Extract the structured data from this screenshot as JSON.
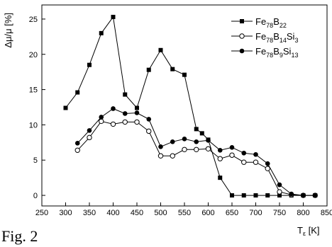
{
  "caption": "Fig. 2",
  "chart_data": {
    "type": "line",
    "xlabel_main": "T",
    "xlabel_sub": "ε",
    "xlabel_unit": " [K]",
    "ylabel": "Δμ/μ [%]",
    "xlim": [
      250,
      850
    ],
    "ylim": [
      -1.5,
      27
    ],
    "x_ticks": [
      250,
      300,
      350,
      400,
      450,
      500,
      550,
      600,
      650,
      700,
      750,
      800,
      850
    ],
    "y_ticks": [
      0,
      5,
      10,
      15,
      20,
      25
    ],
    "grid": false,
    "legend_position": "top-right",
    "series": [
      {
        "name_parts": [
          [
            "Fe",
            false
          ],
          [
            "78",
            true
          ],
          [
            "B",
            false
          ],
          [
            "22",
            true
          ]
        ],
        "marker": "square-filled",
        "x": [
          300,
          325,
          350,
          375,
          400,
          425,
          450,
          475,
          500,
          525,
          550,
          575,
          587,
          600,
          625,
          650,
          675,
          700,
          725,
          750,
          775,
          800,
          825
        ],
        "y": [
          12.4,
          14.6,
          18.5,
          23.0,
          25.3,
          14.3,
          12.4,
          17.8,
          20.6,
          17.9,
          17.1,
          9.4,
          8.8,
          7.9,
          2.5,
          0.0,
          0.0,
          0.0,
          0.0,
          0.0,
          0.0,
          0.0,
          0.0
        ]
      },
      {
        "name_parts": [
          [
            "Fe",
            false
          ],
          [
            "78",
            true
          ],
          [
            "B",
            false
          ],
          [
            "14",
            true
          ],
          [
            "Si",
            false
          ],
          [
            "3",
            true
          ]
        ],
        "marker": "circle-open",
        "x": [
          325,
          350,
          375,
          400,
          425,
          450,
          475,
          500,
          525,
          550,
          575,
          600,
          625,
          650,
          675,
          700,
          725,
          750,
          775,
          800,
          825
        ],
        "y": [
          6.4,
          8.2,
          10.5,
          10.1,
          10.4,
          10.4,
          9.1,
          5.6,
          5.6,
          6.5,
          6.5,
          6.6,
          5.2,
          5.7,
          4.7,
          4.7,
          3.8,
          0.5,
          0.1,
          0.0,
          0.0
        ]
      },
      {
        "name_parts": [
          [
            "Fe",
            false
          ],
          [
            "78",
            true
          ],
          [
            "B",
            false
          ],
          [
            "9",
            true
          ],
          [
            "Si",
            false
          ],
          [
            "13",
            true
          ]
        ],
        "marker": "circle-filled",
        "x": [
          325,
          350,
          375,
          400,
          425,
          450,
          475,
          500,
          525,
          550,
          575,
          600,
          625,
          650,
          675,
          700,
          725,
          750,
          775,
          800,
          825
        ],
        "y": [
          7.4,
          9.2,
          11.1,
          12.3,
          11.6,
          11.7,
          10.8,
          6.9,
          7.6,
          8.0,
          7.6,
          7.8,
          6.4,
          6.8,
          6.0,
          5.8,
          4.5,
          1.5,
          0.2,
          0.0,
          0.0
        ]
      }
    ]
  }
}
